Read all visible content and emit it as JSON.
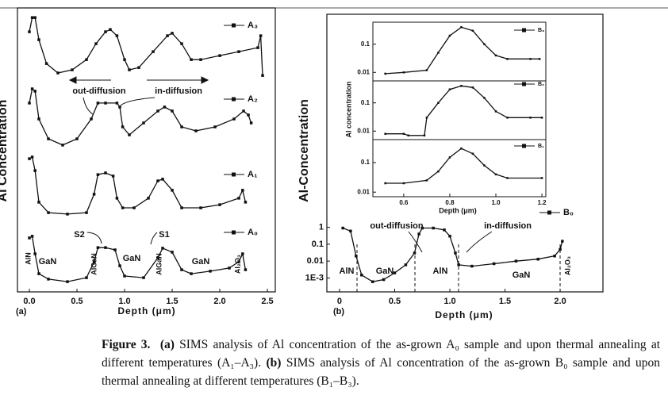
{
  "chart_data": [
    {
      "type": "line",
      "panel_label": "(a)",
      "xlabel": "Depth (μm)",
      "ylabel": "Al Concentration",
      "xlim": [
        -0.125,
        2.583
      ],
      "ylim": [
        0,
        10
      ],
      "xticks": [
        {
          "value": 0,
          "label": "0.0"
        },
        0.5,
        {
          "value": 1,
          "label": "1.0"
        },
        1.5,
        {
          "value": 2,
          "label": "2.0"
        },
        2.5
      ],
      "series": [
        {
          "name": "A₃",
          "color": "#111111",
          "x": [
            0,
            0.03,
            0.06,
            0.1,
            0.18,
            0.3,
            0.45,
            0.6,
            0.7,
            0.8,
            0.85,
            0.92,
            1.0,
            1.05,
            1.15,
            1.3,
            1.45,
            1.5,
            1.6,
            1.7,
            1.8,
            2.0,
            2.2,
            2.4,
            2.43,
            2.45
          ],
          "values": [
            9.16,
            9.66,
            9.66,
            8.88,
            8.04,
            7.71,
            7.82,
            8.18,
            8.74,
            9.16,
            9.24,
            9.02,
            8.18,
            7.82,
            7.9,
            8.46,
            9.02,
            9.11,
            8.74,
            8.18,
            8.18,
            8.32,
            8.46,
            8.6,
            9.02,
            7.62
          ]
        },
        {
          "name": "A₂",
          "color": "#111111",
          "x": [
            0,
            0.03,
            0.06,
            0.1,
            0.2,
            0.35,
            0.5,
            0.65,
            0.72,
            0.8,
            0.92,
            0.95,
            0.98,
            1.05,
            1.2,
            1.35,
            1.42,
            1.5,
            1.6,
            1.75,
            1.95,
            2.15,
            2.25,
            2.3,
            2.33
          ],
          "values": [
            6.65,
            7.15,
            7.07,
            6.09,
            5.39,
            5.17,
            5.39,
            6.09,
            6.65,
            6.65,
            6.65,
            6.51,
            5.81,
            5.53,
            5.95,
            6.37,
            6.51,
            6.37,
            5.81,
            5.67,
            5.81,
            6.09,
            6.37,
            6.23,
            5.95
          ]
        },
        {
          "name": "A₁",
          "color": "#111111",
          "x": [
            0,
            0.03,
            0.06,
            0.1,
            0.2,
            0.4,
            0.6,
            0.68,
            0.72,
            0.8,
            0.88,
            0.92,
            0.98,
            1.1,
            1.25,
            1.35,
            1.4,
            1.5,
            1.6,
            1.8,
            2.0,
            2.2,
            2.24,
            2.27
          ],
          "values": [
            4.69,
            4.75,
            4.27,
            3.16,
            2.79,
            2.74,
            2.79,
            3.44,
            4.13,
            4.19,
            4.08,
            3.3,
            2.96,
            2.96,
            3.3,
            3.91,
            3.97,
            3.58,
            2.96,
            2.96,
            3.07,
            3.3,
            3.58,
            3.16
          ]
        },
        {
          "name": "A₀",
          "color": "#111111",
          "x": [
            0,
            0.03,
            0.06,
            0.1,
            0.2,
            0.4,
            0.6,
            0.68,
            0.72,
            0.8,
            0.9,
            0.95,
            1.0,
            1.2,
            1.35,
            1.4,
            1.5,
            1.6,
            1.7,
            1.9,
            2.1,
            2.2,
            2.24,
            2.27
          ],
          "values": [
            1.9,
            1.96,
            1.34,
            0.64,
            0.45,
            0.36,
            0.5,
            1.06,
            1.56,
            1.56,
            1.48,
            0.92,
            0.56,
            0.5,
            1.2,
            1.54,
            1.4,
            0.78,
            0.64,
            0.73,
            0.84,
            1.06,
            1.34,
            0.78
          ]
        }
      ],
      "annotations": [
        "out-diffusion",
        "in-diffusion",
        "S2",
        "S1",
        "AlN",
        "GaN",
        "AlGaN",
        "GaN",
        "AlGaN",
        "GaN",
        "Al₂O₃"
      ]
    },
    {
      "type": "line",
      "panel_label": "(b)",
      "xlabel": "Depth (μm)",
      "ylabel": "Al-Concentration",
      "yscale": "log",
      "xlim": [
        -0.115,
        2.388
      ],
      "ylim": [
        0.00015,
        6
      ],
      "xticks": [
        0,
        0.5,
        {
          "value": 1,
          "label": "1.0"
        },
        1.5,
        {
          "value": 2,
          "label": "2.0"
        }
      ],
      "yticks": [
        {
          "value": 0.001,
          "label": "1E-3"
        },
        0.01,
        0.1,
        1
      ],
      "series": [
        {
          "name": "B₀",
          "color": "#111111",
          "x": [
            0.03,
            0.1,
            0.15,
            0.2,
            0.3,
            0.4,
            0.5,
            0.6,
            0.68,
            0.72,
            0.75,
            0.85,
            0.95,
            1.0,
            1.05,
            1.08,
            1.2,
            1.4,
            1.6,
            1.8,
            1.95,
            2.0,
            2.02
          ],
          "values": [
            0.9,
            0.6,
            0.02,
            0.0015,
            0.0006,
            0.0008,
            0.002,
            0.006,
            0.03,
            0.4,
            0.9,
            0.9,
            0.7,
            0.3,
            0.03,
            0.006,
            0.005,
            0.007,
            0.01,
            0.013,
            0.02,
            0.05,
            0.15
          ]
        }
      ],
      "annotations": [
        "out-diffusion",
        "in-diffusion",
        "AlN",
        "GaN",
        "AlN",
        "GaN",
        "Al₂O₃"
      ]
    },
    {
      "type": "stacked-log-line",
      "xlabel": "Depth (μm)",
      "ylabel": "Al concentration",
      "xlim": [
        0.466,
        1.217
      ],
      "xticks": [
        0.6,
        0.8,
        {
          "value": 1,
          "label": "1.0"
        },
        1.2
      ],
      "panels": [
        {
          "ylim": [
            0.005,
            0.6
          ],
          "yticks": [
            0.01,
            0.1
          ],
          "series": [
            {
              "name": "B₃",
              "color": "#111111",
              "x": [
                0.52,
                0.6,
                0.7,
                0.75,
                0.8,
                0.85,
                0.9,
                0.95,
                1.0,
                1.05,
                1.15,
                1.19
              ],
              "values": [
                0.009,
                0.01,
                0.012,
                0.05,
                0.2,
                0.4,
                0.3,
                0.1,
                0.04,
                0.03,
                0.03,
                0.03
              ]
            }
          ]
        },
        {
          "ylim": [
            0.005,
            0.6
          ],
          "yticks": [
            0.01,
            0.1
          ],
          "series": [
            {
              "name": "B₂",
              "color": "#111111",
              "x": [
                0.52,
                0.6,
                0.62,
                0.69,
                0.7,
                0.75,
                0.8,
                0.85,
                0.9,
                0.95,
                1.0,
                1.05,
                1.15,
                1.2
              ],
              "values": [
                0.008,
                0.008,
                0.007,
                0.007,
                0.03,
                0.1,
                0.3,
                0.4,
                0.35,
                0.15,
                0.05,
                0.03,
                0.03,
                0.03
              ]
            }
          ]
        },
        {
          "ylim": [
            0.007,
            0.6
          ],
          "yticks": [
            0.01,
            0.1
          ],
          "series": [
            {
              "name": "B₁",
              "color": "#111111",
              "x": [
                0.52,
                0.6,
                0.7,
                0.75,
                0.8,
                0.85,
                0.9,
                0.95,
                1.0,
                1.05,
                1.2
              ],
              "values": [
                0.02,
                0.02,
                0.025,
                0.05,
                0.15,
                0.3,
                0.2,
                0.08,
                0.04,
                0.03,
                0.03
              ]
            }
          ]
        }
      ]
    }
  ],
  "caption": {
    "label": "Figure 3.",
    "a_label": "(a)",
    "a_text": "SIMS analysis of Al concentration of the as-grown A₀ sample and upon thermal annealing at different temperatures (A₁–A₃).",
    "b_label": "(b)",
    "b_text": "SIMS analysis of Al concentration of the as-grown B₀ sample and upon thermal annealing at different temperatures (B₁–B₃)."
  }
}
